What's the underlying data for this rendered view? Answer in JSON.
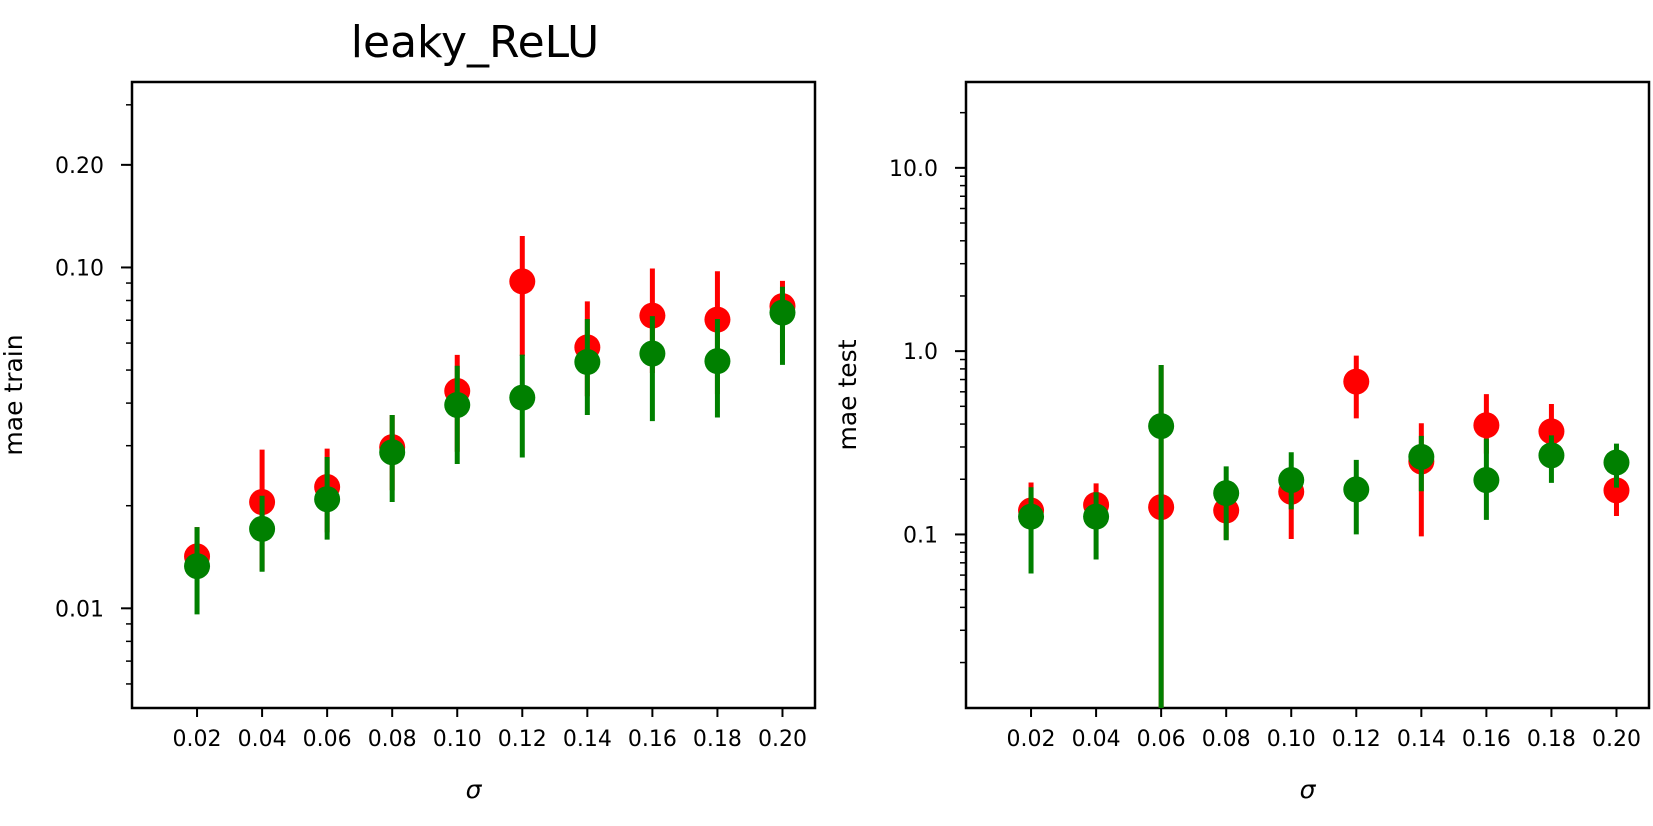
{
  "chart_data": [
    {
      "type": "scatter",
      "title": "leaky_ReLU",
      "xlabel": "σ",
      "ylabel": "mae train",
      "yscale": "log",
      "ylim": [
        0.0051,
        0.35
      ],
      "xlim": [
        0.0,
        0.21
      ],
      "xticks": [
        0.02,
        0.04,
        0.06,
        0.08,
        0.1,
        0.12,
        0.14,
        0.16,
        0.18,
        0.2
      ],
      "xtick_labels": [
        "0.02",
        "0.04",
        "0.06",
        "0.08",
        "0.10",
        "0.12",
        "0.14",
        "0.16",
        "0.18",
        "0.20"
      ],
      "yticks": [
        0.01,
        0.1,
        0.2
      ],
      "ytick_labels": [
        "0.01",
        "0.10",
        "0.20"
      ],
      "grid": false,
      "legend": "none",
      "series": [
        {
          "color": "#ff0000",
          "x": [
            0.02,
            0.04,
            0.06,
            0.08,
            0.1,
            0.12,
            0.14,
            0.16,
            0.18,
            0.2
          ],
          "y": [
            0.0142,
            0.0205,
            0.0227,
            0.0297,
            0.0434,
            0.091,
            0.0583,
            0.0722,
            0.0703,
            0.077
          ],
          "yerr_low": [
            0.0128,
            0.0129,
            0.0167,
            0.0222,
            0.0288,
            0.055,
            0.0419,
            0.049,
            0.0425,
            0.056
          ],
          "yerr_high": [
            0.0173,
            0.0292,
            0.0294,
            0.0369,
            0.0554,
            0.1237,
            0.0795,
            0.0993,
            0.0975,
            0.0913
          ]
        },
        {
          "color": "#008000",
          "x": [
            0.02,
            0.04,
            0.06,
            0.08,
            0.1,
            0.12,
            0.14,
            0.16,
            0.18,
            0.2
          ],
          "y": [
            0.0133,
            0.0171,
            0.0209,
            0.0287,
            0.0395,
            0.0415,
            0.0528,
            0.0559,
            0.0531,
            0.0737
          ],
          "yerr_low": [
            0.0096,
            0.0128,
            0.0159,
            0.0205,
            0.0265,
            0.0277,
            0.0369,
            0.0354,
            0.0363,
            0.0518
          ],
          "yerr_high": [
            0.0173,
            0.0214,
            0.0278,
            0.0369,
            0.0515,
            0.0555,
            0.0706,
            0.072,
            0.0706,
            0.0878
          ]
        }
      ]
    },
    {
      "type": "scatter",
      "title": "",
      "xlabel": "σ",
      "ylabel": "mae test",
      "yscale": "log",
      "ylim": [
        0.0113,
        29.4
      ],
      "xlim": [
        0.0,
        0.21
      ],
      "xticks": [
        0.02,
        0.04,
        0.06,
        0.08,
        0.1,
        0.12,
        0.14,
        0.16,
        0.18,
        0.2
      ],
      "xtick_labels": [
        "0.02",
        "0.04",
        "0.06",
        "0.08",
        "0.10",
        "0.12",
        "0.14",
        "0.16",
        "0.18",
        "0.20"
      ],
      "yticks": [
        0.1,
        1.0,
        10.0
      ],
      "ytick_labels": [
        "0.1",
        "1.0",
        "10.0"
      ],
      "grid": false,
      "legend": "none",
      "series": [
        {
          "color": "#ff0000",
          "x": [
            0.02,
            0.04,
            0.06,
            0.08,
            0.1,
            0.12,
            0.14,
            0.16,
            0.18,
            0.2
          ],
          "y": [
            0.135,
            0.145,
            0.141,
            0.135,
            0.171,
            0.682,
            0.25,
            0.394,
            0.365,
            0.174
          ],
          "yerr_low": [
            0.106,
            0.109,
            0.0113,
            0.094,
            0.0945,
            0.43,
            0.0976,
            0.276,
            0.268,
            0.126
          ],
          "yerr_high": [
            0.192,
            0.19,
            0.84,
            0.188,
            0.218,
            0.945,
            0.404,
            0.583,
            0.515,
            0.22
          ]
        },
        {
          "color": "#008000",
          "x": [
            0.02,
            0.04,
            0.06,
            0.08,
            0.1,
            0.12,
            0.14,
            0.16,
            0.18,
            0.2
          ],
          "y": [
            0.125,
            0.125,
            0.39,
            0.168,
            0.198,
            0.176,
            0.265,
            0.198,
            0.27,
            0.247
          ],
          "yerr_low": [
            0.0612,
            0.073,
            0.0113,
            0.093,
            0.137,
            0.1,
            0.172,
            0.12,
            0.191,
            0.18
          ],
          "yerr_high": [
            0.181,
            0.17,
            0.84,
            0.235,
            0.281,
            0.255,
            0.345,
            0.333,
            0.347,
            0.313
          ]
        }
      ]
    }
  ]
}
